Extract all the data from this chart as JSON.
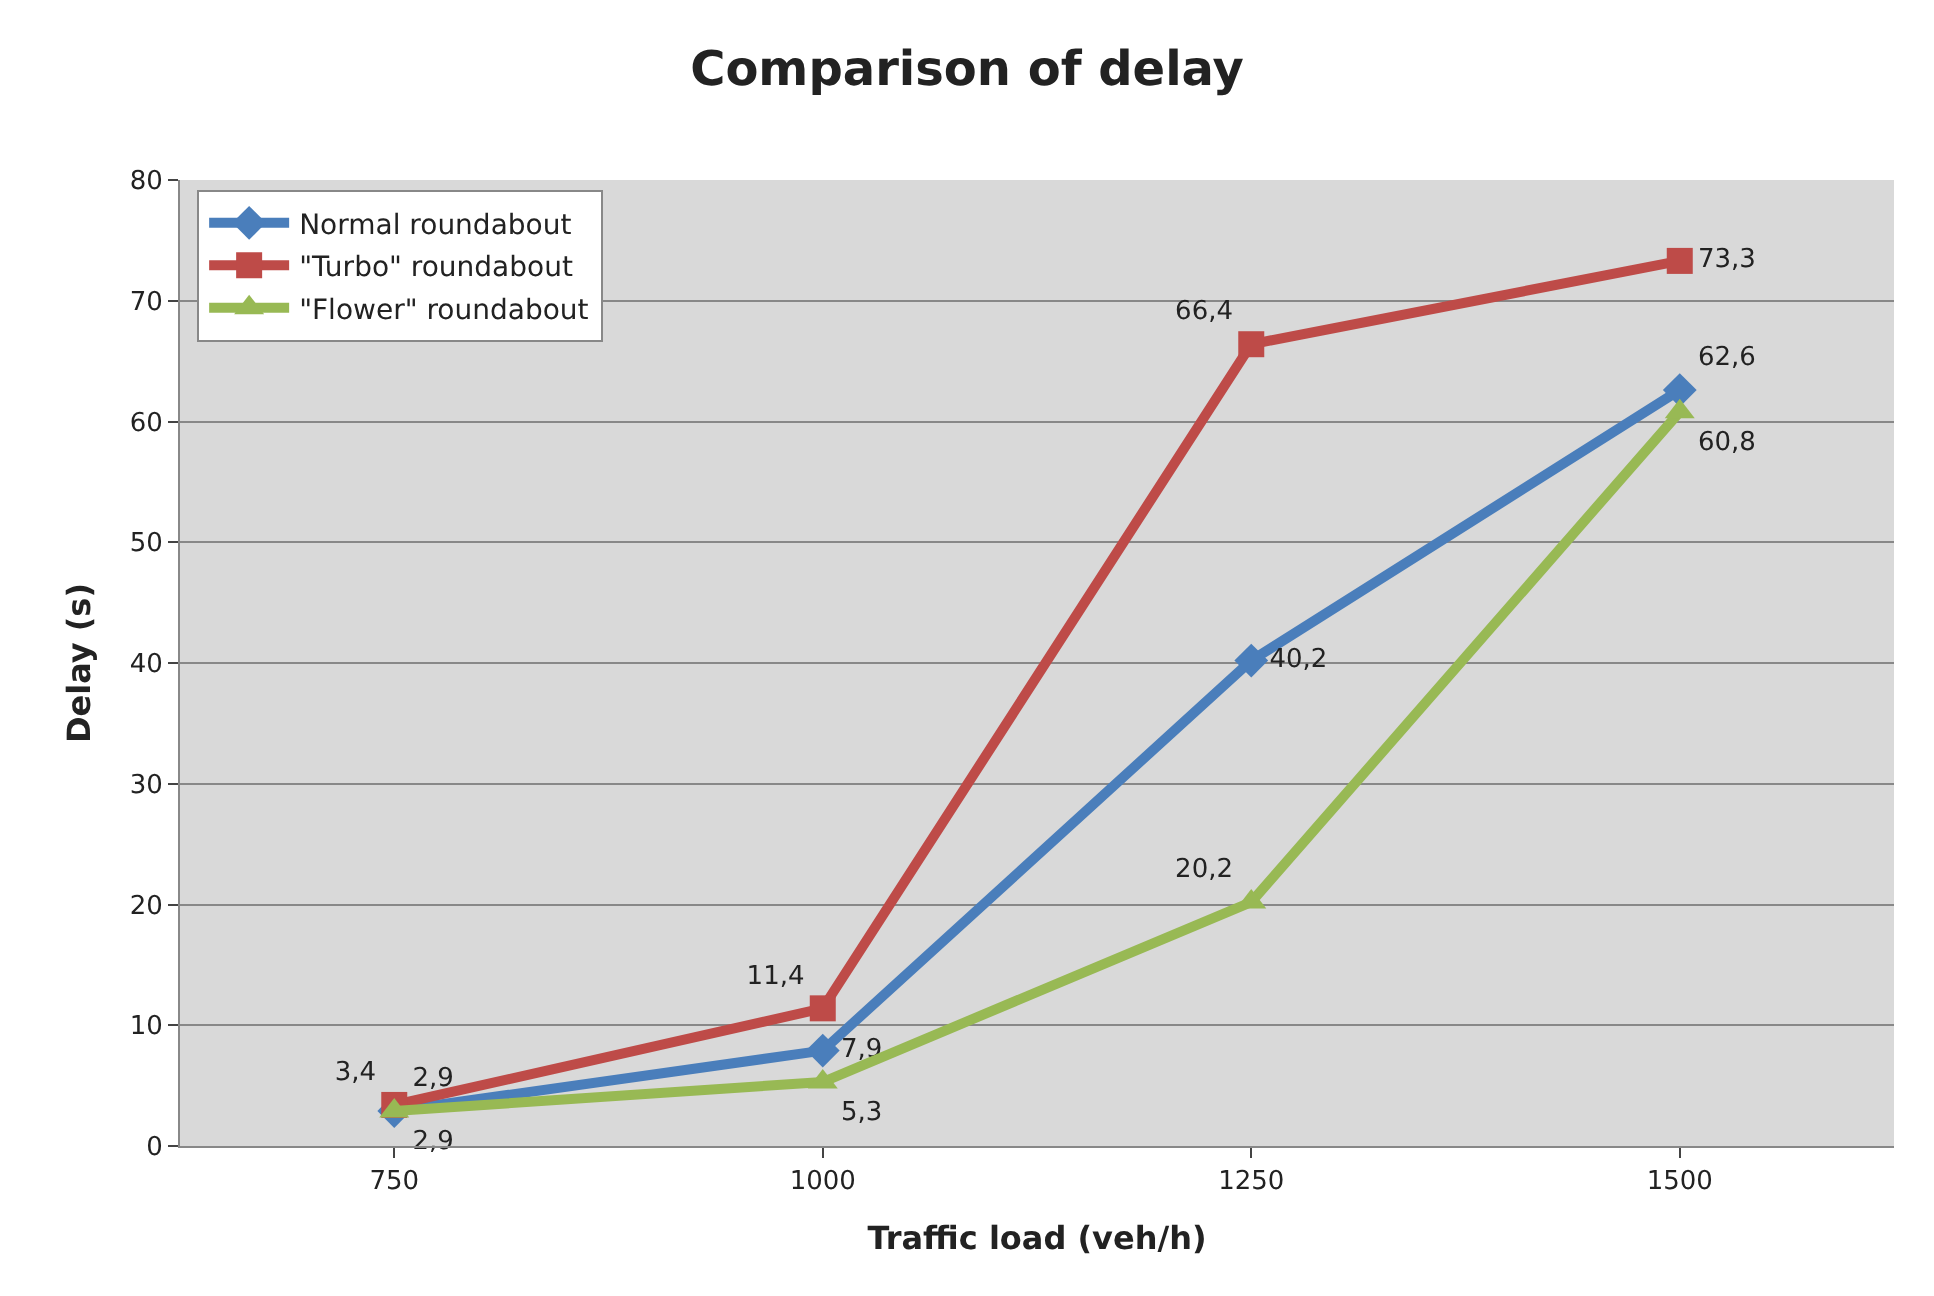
{
  "chart_data": {
    "type": "line",
    "title": "Comparison of delay",
    "xlabel": "Traffic load (veh/h)",
    "ylabel": "Delay (s)",
    "categories": [
      "750",
      "1000",
      "1250",
      "1500"
    ],
    "series": [
      {
        "name": "Normal roundabout",
        "color": "#4a7ebb",
        "marker": "diamond",
        "values": [
          2.9,
          7.9,
          40.2,
          62.6
        ],
        "value_labels": [
          "2,9",
          "7,9",
          "40,2",
          "62,6"
        ]
      },
      {
        "name": "\"Turbo\" roundabout",
        "color": "#be4b48",
        "marker": "square",
        "values": [
          3.4,
          11.4,
          66.4,
          73.3
        ],
        "value_labels": [
          "3,4",
          "11,4",
          "66,4",
          "73,3"
        ]
      },
      {
        "name": "\"Flower\" roundabout",
        "color": "#98b954",
        "marker": "triangle",
        "values": [
          2.9,
          5.3,
          20.2,
          60.8
        ],
        "value_labels": [
          "2,9",
          "5,3",
          "20,2",
          "60,8"
        ]
      }
    ],
    "ylim": [
      0,
      80
    ],
    "yticks": [
      0,
      10,
      20,
      30,
      40,
      50,
      60,
      70,
      80
    ],
    "grid": "y",
    "legend": "top left",
    "line_style": "solid"
  }
}
